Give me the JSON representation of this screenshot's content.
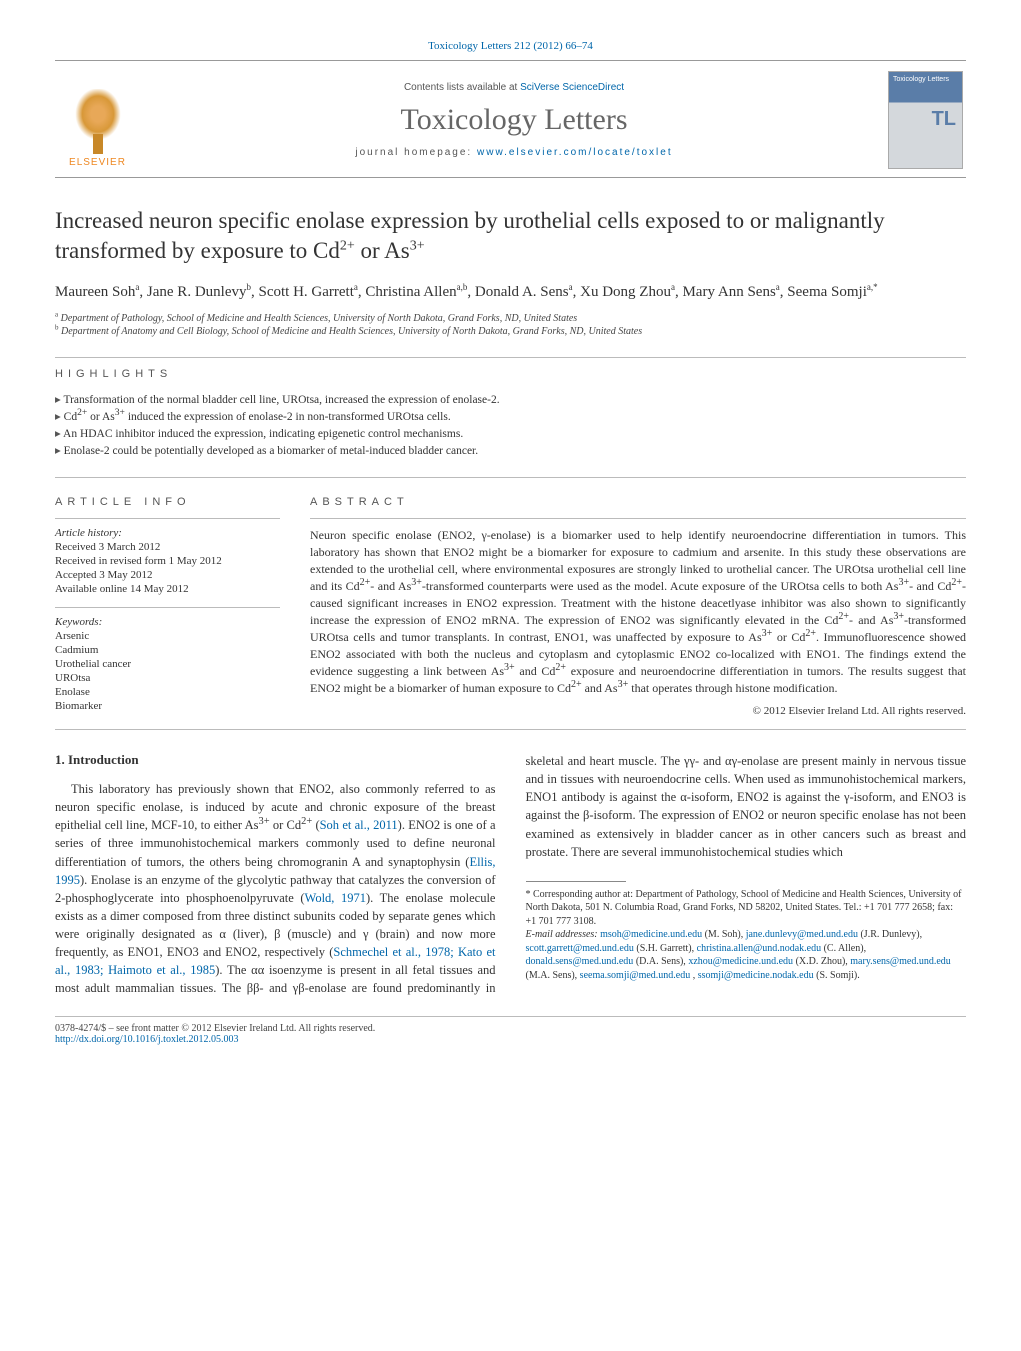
{
  "top_cite": {
    "prefix": "Toxicology Letters 212 (2012) 66–74",
    "link_text": "Toxicology Letters"
  },
  "banner": {
    "contents_prefix": "Contents lists available at ",
    "contents_link": "SciVerse ScienceDirect",
    "journal_title": "Toxicology Letters",
    "homepage_prefix": "journal homepage: ",
    "homepage_link": "www.elsevier.com/locate/toxlet",
    "elsevier_label": "ELSEVIER",
    "cover_badge": "TL"
  },
  "title": {
    "text_part1": "Increased neuron specific enolase expression by urothelial cells exposed to or malignantly transformed by exposure to Cd",
    "sup1": "2+",
    "mid": " or As",
    "sup2": "3+"
  },
  "authors_line": "Maureen Soh^a, Jane R. Dunlevy^b, Scott H. Garrett^a, Christina Allen^a,b, Donald A. Sens^a, Xu Dong Zhou^a, Mary Ann Sens^a, Seema Somji^a,*",
  "authors": [
    {
      "name": "Maureen Soh",
      "aff": "a"
    },
    {
      "name": "Jane R. Dunlevy",
      "aff": "b"
    },
    {
      "name": "Scott H. Garrett",
      "aff": "a"
    },
    {
      "name": "Christina Allen",
      "aff": "a,b"
    },
    {
      "name": "Donald A. Sens",
      "aff": "a"
    },
    {
      "name": "Xu Dong Zhou",
      "aff": "a"
    },
    {
      "name": "Mary Ann Sens",
      "aff": "a"
    },
    {
      "name": "Seema Somji",
      "aff": "a,*"
    }
  ],
  "affiliations": {
    "a": "Department of Pathology, School of Medicine and Health Sciences, University of North Dakota, Grand Forks, ND, United States",
    "b": "Department of Anatomy and Cell Biology, School of Medicine and Health Sciences, University of North Dakota, Grand Forks, ND, United States"
  },
  "highlights_label": "HIGHLIGHTS",
  "highlights": [
    "Transformation of the normal bladder cell line, UROtsa, increased the expression of enolase-2.",
    "Cd2+ or As3+ induced the expression of enolase-2 in non-transformed UROtsa cells.",
    "An HDAC inhibitor induced the expression, indicating epigenetic control mechanisms.",
    "Enolase-2 could be potentially developed as a biomarker of metal-induced bladder cancer."
  ],
  "article_info_label": "ARTICLE INFO",
  "history_head": "Article history:",
  "history": [
    "Received 3 March 2012",
    "Received in revised form 1 May 2012",
    "Accepted 3 May 2012",
    "Available online 14 May 2012"
  ],
  "keywords_head": "Keywords:",
  "keywords": [
    "Arsenic",
    "Cadmium",
    "Urothelial cancer",
    "UROtsa",
    "Enolase",
    "Biomarker"
  ],
  "abstract_label": "ABSTRACT",
  "abstract_text": "Neuron specific enolase (ENO2, γ-enolase) is a biomarker used to help identify neuroendocrine differentiation in tumors. This laboratory has shown that ENO2 might be a biomarker for exposure to cadmium and arsenite. In this study these observations are extended to the urothelial cell, where environmental exposures are strongly linked to urothelial cancer. The UROtsa urothelial cell line and its Cd2+- and As3+-transformed counterparts were used as the model. Acute exposure of the UROtsa cells to both As3+- and Cd2+-caused significant increases in ENO2 expression. Treatment with the histone deacetlyase inhibitor was also shown to significantly increase the expression of ENO2 mRNA. The expression of ENO2 was significantly elevated in the Cd2+- and As3+-transformed UROtsa cells and tumor transplants. In contrast, ENO1, was unaffected by exposure to As3+ or Cd2+. Immunofluorescence showed ENO2 associated with both the nucleus and cytoplasm and cytoplasmic ENO2 co-localized with ENO1. The findings extend the evidence suggesting a link between As3+ and Cd2+ exposure and neuroendocrine differentiation in tumors. The results suggest that ENO2 might be a biomarker of human exposure to Cd2+ and As3+ that operates through histone modification.",
  "abstract_copyright": "© 2012 Elsevier Ireland Ltd. All rights reserved.",
  "intro_heading": "1.  Introduction",
  "intro_para": "This laboratory has previously shown that ENO2, also commonly referred to as neuron specific enolase, is induced by acute and chronic exposure of the breast epithelial cell line, MCF-10, to either As3+ or Cd2+ (Soh et al., 2011). ENO2 is one of a series of three immunohistochemical markers commonly used to define neuronal differentiation of tumors, the others being chromogranin A and synaptophysin (Ellis, 1995). Enolase is an enzyme of the glycolytic pathway that catalyzes the conversion of 2-phosphoglycerate into phosphoenolpyruvate (Wold, 1971). The enolase molecule exists as a dimer composed from three distinct subunits coded by separate genes which were originally designated as α (liver), β (muscle) and γ (brain) and now more frequently, as ENO1, ENO3 and ENO2, respectively (Schmechel et al., 1978; Kato et al., 1983; Haimoto et al., 1985). The αα isoenzyme is present in all fetal tissues and most adult mammalian tissues. The ββ- and γβ-enolase are found predominantly in skeletal and heart muscle. The γγ- and αγ-enolase are present mainly in nervous tissue and in tissues with neuroendocrine cells. When used as immunohistochemical markers, ENO1 antibody is against the α-isoform, ENO2 is against the γ-isoform, and ENO3 is against the β-isoform. The expression of ENO2 or neuron specific enolase has not been examined as extensively in bladder cancer as in other cancers such as breast and prostate. There are several immunohistochemical studies which",
  "intro_links": {
    "soh": "Soh et al., 2011",
    "ellis": "Ellis, 1995",
    "wold": "Wold, 1971",
    "schmechel": "Schmechel et al., 1978; Kato et al., 1983; Haimoto et al., 1985"
  },
  "footnote": {
    "corr_label": "* Corresponding author at: Department of Pathology, School of Medicine and Health Sciences, University of North Dakota, 501 N. Columbia Road, Grand Forks, ND 58202, United States. Tel.: +1 701 777 2658; fax: +1 701 777 3108.",
    "email_label": "E-mail addresses:",
    "emails": [
      {
        "addr": "msoh@medicine.und.edu",
        "who": "(M. Soh)"
      },
      {
        "addr": "jane.dunlevy@med.und.edu",
        "who": "(J.R. Dunlevy)"
      },
      {
        "addr": "scott.garrett@med.und.edu",
        "who": "(S.H. Garrett)"
      },
      {
        "addr": "christina.allen@und.nodak.edu",
        "who": "(C. Allen)"
      },
      {
        "addr": "donald.sens@med.und.edu",
        "who": "(D.A. Sens)"
      },
      {
        "addr": "xzhou@medicine.und.edu",
        "who": "(X.D. Zhou)"
      },
      {
        "addr": "mary.sens@med.und.edu",
        "who": "(M.A. Sens)"
      },
      {
        "addr": "seema.somji@med.und.edu",
        "who": ""
      },
      {
        "addr": "ssomji@medicine.nodak.edu",
        "who": "(S. Somji)"
      }
    ]
  },
  "footer": {
    "left": "0378-4274/$ – see front matter © 2012 Elsevier Ireland Ltd. All rights reserved.",
    "doi_label": "http://dx.doi.org/",
    "doi": "10.1016/j.toxlet.2012.05.003"
  },
  "colors": {
    "link": "#0066aa",
    "rule": "#bbbbbb",
    "text_muted": "#666666",
    "elsevier_orange": "#ee8822",
    "cover_blue": "#5a7da8"
  }
}
